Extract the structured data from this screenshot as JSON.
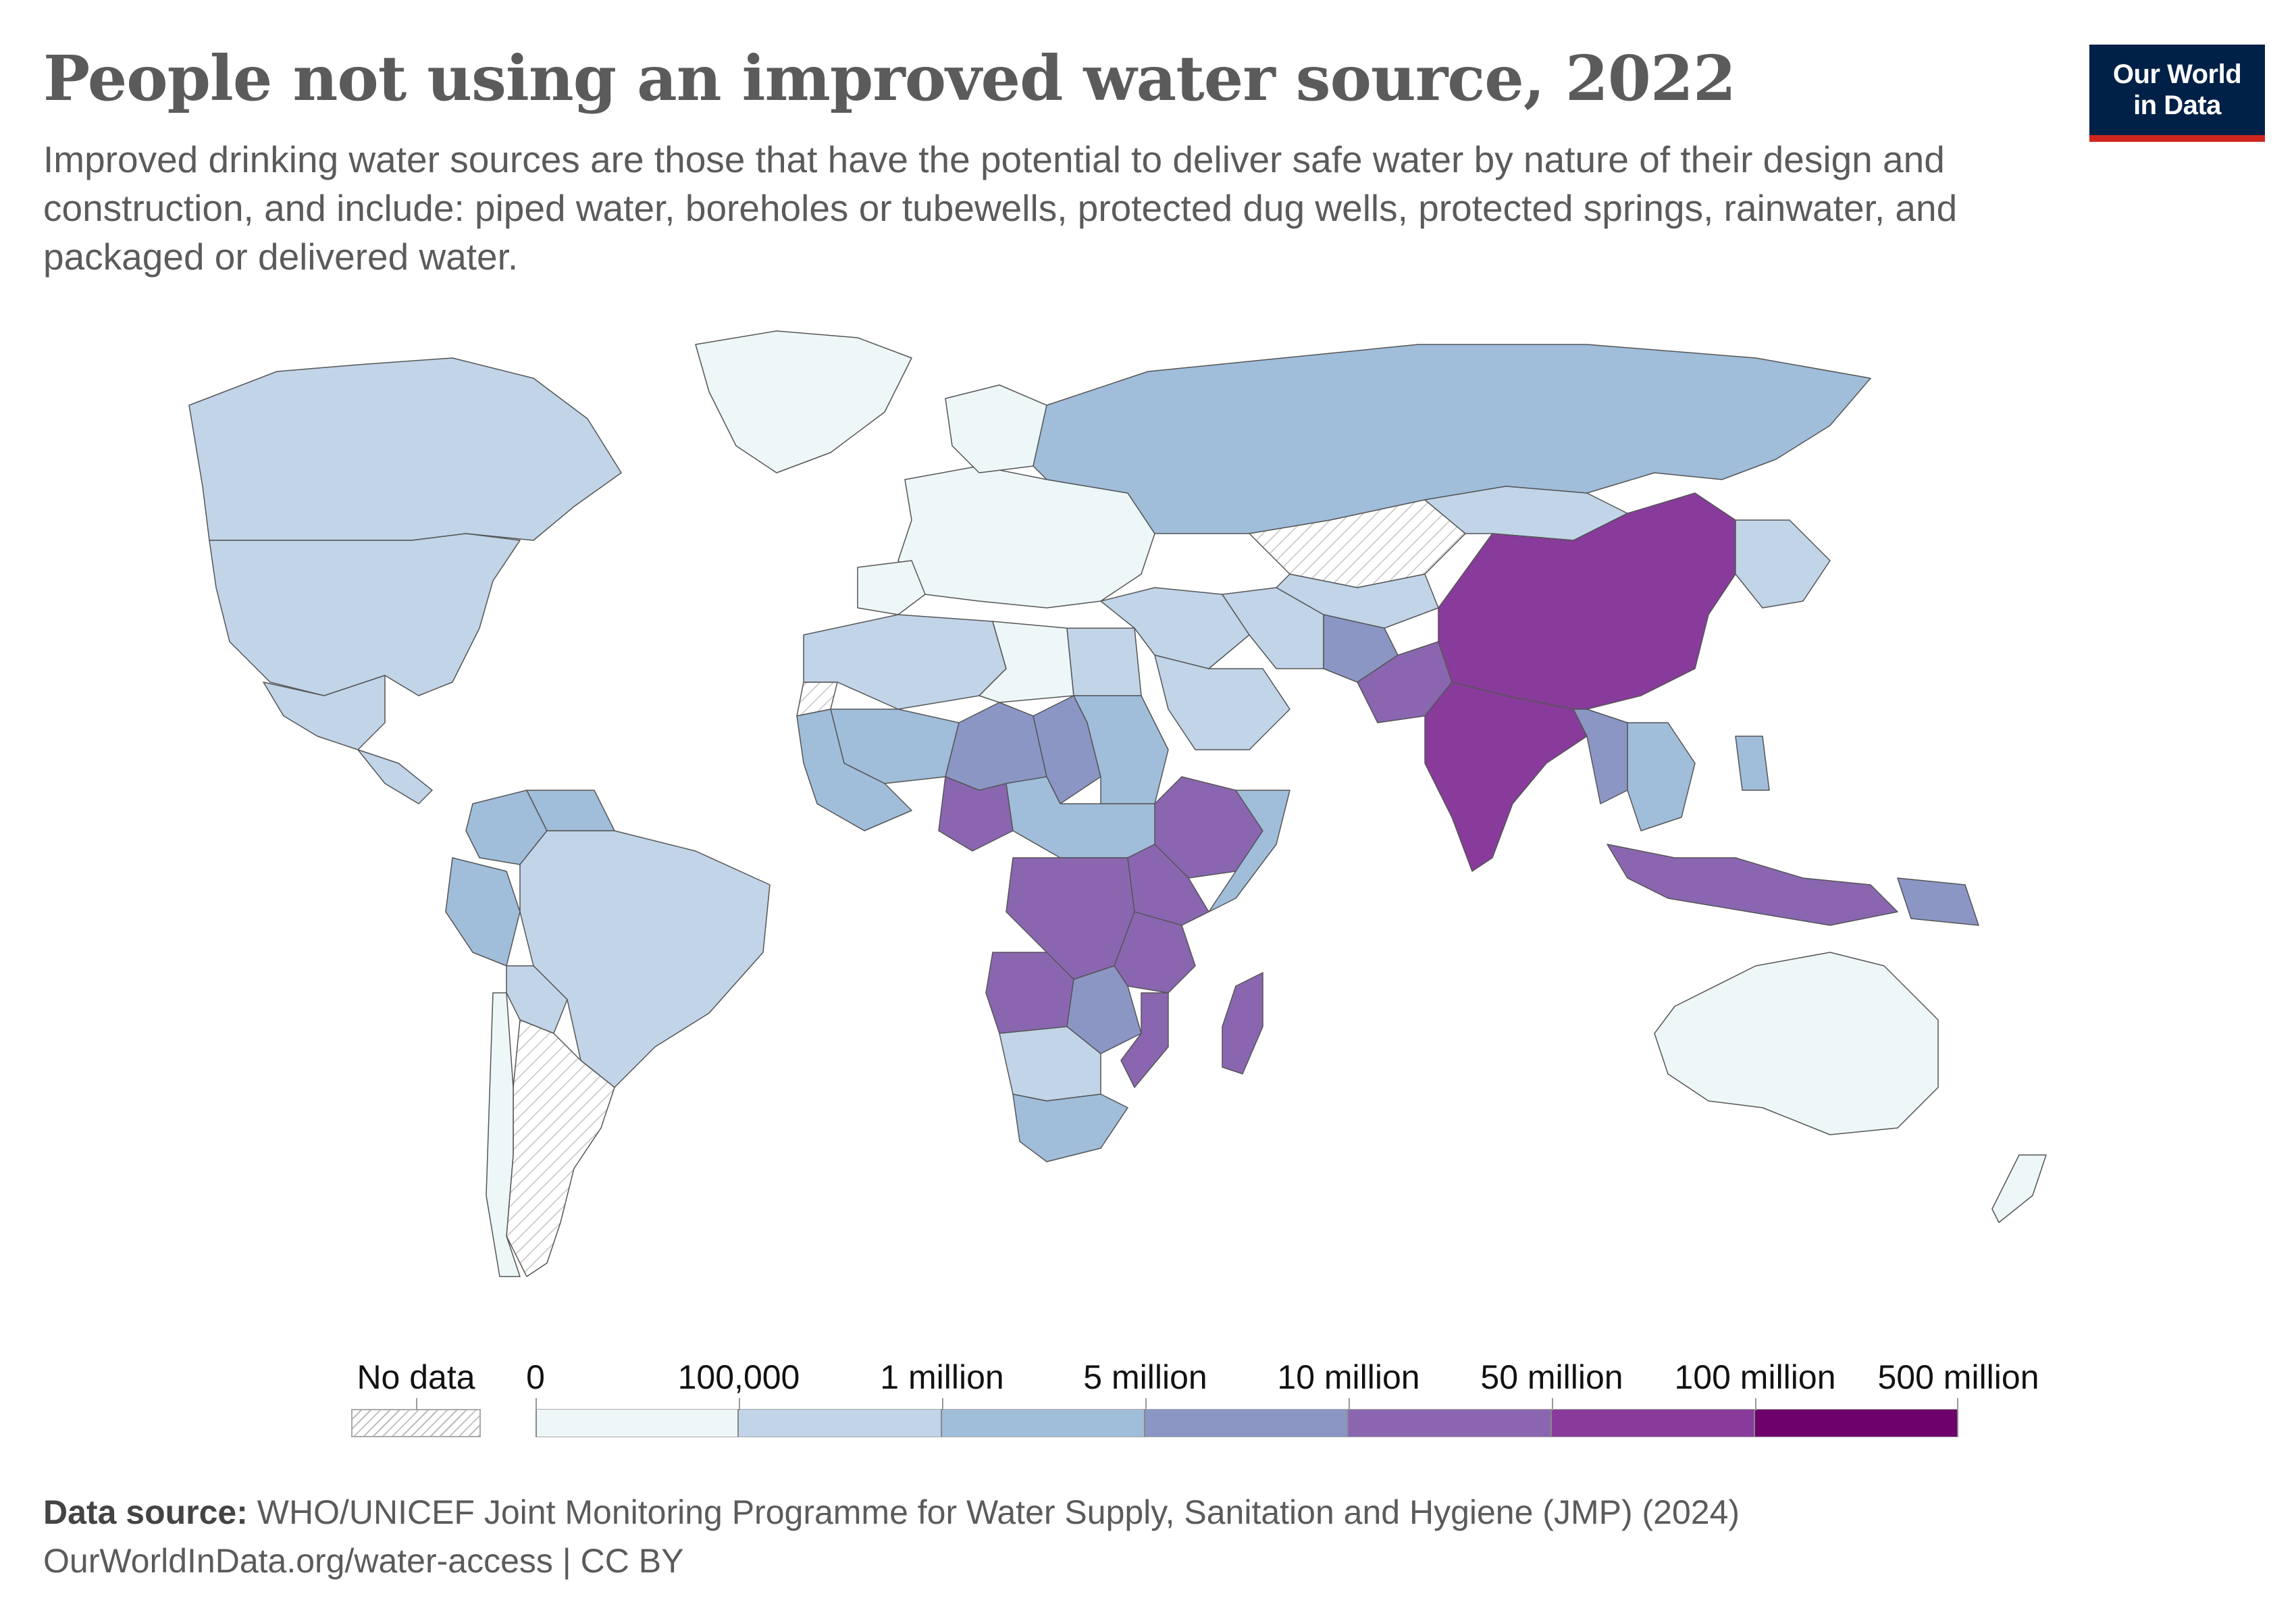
{
  "header": {
    "title": "People not using an improved water source, 2022",
    "subtitle": "Improved drinking water sources are those that have the potential to deliver safe water by nature of their design and construction, and include: piped water, boreholes or tubewells, protected dug wells, protected springs, rainwater, and packaged or delivered water.",
    "logo_line1": "Our World",
    "logo_line2": "in Data"
  },
  "legend": {
    "no_data_label": "No data",
    "thresholds": [
      "0",
      "100,000",
      "1 million",
      "5 million",
      "10 million",
      "50 million",
      "100 million",
      "500 million"
    ],
    "colors": [
      "#eef7f8",
      "#c1d4e8",
      "#a0bdda",
      "#8b96c5",
      "#8a66b1",
      "#883b9b",
      "#6e016b"
    ]
  },
  "map_data": {
    "type": "choropleth",
    "metric": "Number of people not using an improved water source",
    "year": 2022,
    "regions": [
      {
        "name": "China",
        "bin": 5
      },
      {
        "name": "India",
        "bin": 5
      },
      {
        "name": "Pakistan",
        "bin": 4
      },
      {
        "name": "Afghanistan",
        "bin": 3
      },
      {
        "name": "Bangladesh",
        "bin": 4
      },
      {
        "name": "Myanmar",
        "bin": 3
      },
      {
        "name": "Indonesia",
        "bin": 4
      },
      {
        "name": "Nigeria",
        "bin": 4
      },
      {
        "name": "Ethiopia",
        "bin": 4
      },
      {
        "name": "DR Congo",
        "bin": 4
      },
      {
        "name": "Tanzania",
        "bin": 4
      },
      {
        "name": "Kenya",
        "bin": 4
      },
      {
        "name": "Uganda",
        "bin": 4
      },
      {
        "name": "Angola",
        "bin": 4
      },
      {
        "name": "Madagascar",
        "bin": 4
      },
      {
        "name": "Mozambique",
        "bin": 4
      },
      {
        "name": "Niger",
        "bin": 3
      },
      {
        "name": "Chad",
        "bin": 3
      },
      {
        "name": "Mali",
        "bin": 2
      },
      {
        "name": "Sudan",
        "bin": 2
      },
      {
        "name": "Russia",
        "bin": 2
      },
      {
        "name": "Brazil",
        "bin": 1
      },
      {
        "name": "United States",
        "bin": 1
      },
      {
        "name": "Canada",
        "bin": 1
      },
      {
        "name": "Australia",
        "bin": 0
      },
      {
        "name": "Greenland",
        "bin": 0
      },
      {
        "name": "Kazakhstan",
        "bin": -1
      },
      {
        "name": "Argentina",
        "bin": -1
      },
      {
        "name": "Western Sahara",
        "bin": -1
      }
    ]
  },
  "footer": {
    "source_label": "Data source:",
    "source_text": " WHO/UNICEF Joint Monitoring Programme for Water Supply, Sanitation and Hygiene (JMP) (2024)",
    "url_text": "OurWorldInData.org/water-access | CC BY"
  }
}
